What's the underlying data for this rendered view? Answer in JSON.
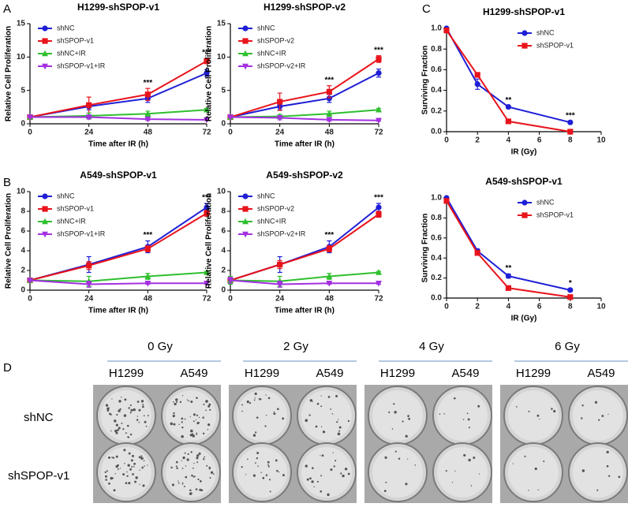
{
  "panel_labels": [
    "A",
    "B",
    "C",
    "D"
  ],
  "chart_data": [
    {
      "type": "line",
      "title": "H1299-shSPOP-v1",
      "xlabel": "Time after IR (h)",
      "ylabel": "Relative Cell Proliferation",
      "x": [
        0,
        24,
        48,
        72
      ],
      "xlim": [
        0,
        72
      ],
      "xticks": [
        0,
        24,
        48,
        72
      ],
      "ylim": [
        0,
        15
      ],
      "yticks": [
        0,
        5,
        10,
        15
      ],
      "legend": "upper left",
      "series": [
        {
          "name": "shNC",
          "color": "#1f1fd6",
          "marker": "circle",
          "values": [
            1,
            2.6,
            3.8,
            7.6
          ],
          "errors": [
            0.2,
            0.5,
            0.6,
            0.5
          ]
        },
        {
          "name": "shSPOP-v1",
          "color": "#e8141c",
          "marker": "square",
          "values": [
            1,
            2.8,
            4.4,
            9.4
          ],
          "errors": [
            0.1,
            1.2,
            0.9,
            0.4
          ]
        },
        {
          "name": "shNC+IR",
          "color": "#2fbf2f",
          "marker": "triangle-up",
          "values": [
            1,
            1.2,
            1.5,
            2.1
          ],
          "errors": [
            0.1,
            0.4,
            0.4,
            0.2
          ]
        },
        {
          "name": "shSPOP-v1+IR",
          "color": "#a330e0",
          "marker": "triangle-down",
          "values": [
            1,
            1.0,
            0.7,
            0.6
          ],
          "errors": [
            0.1,
            0.3,
            0.2,
            0.1
          ]
        }
      ],
      "annotations": [
        {
          "text": "***",
          "x": 48
        },
        {
          "text": "***",
          "x": 72
        }
      ]
    },
    {
      "type": "line",
      "title": "H1299-shSPOP-v2",
      "xlabel": "Time after IR (h)",
      "ylabel": "Relative Cell Proliferation",
      "x": [
        0,
        24,
        48,
        72
      ],
      "xlim": [
        0,
        72
      ],
      "xticks": [
        0,
        24,
        48,
        72
      ],
      "ylim": [
        0,
        15
      ],
      "yticks": [
        0,
        5,
        10,
        15
      ],
      "legend": "upper left",
      "series": [
        {
          "name": "shNC",
          "color": "#1f1fd6",
          "marker": "circle",
          "values": [
            1,
            2.6,
            3.8,
            7.6
          ],
          "errors": [
            0.2,
            0.5,
            0.6,
            0.6
          ]
        },
        {
          "name": "shSPOP-v2",
          "color": "#e8141c",
          "marker": "square",
          "values": [
            1,
            3.3,
            4.8,
            9.7
          ],
          "errors": [
            0.1,
            1.3,
            0.9,
            0.5
          ]
        },
        {
          "name": "shNC+IR",
          "color": "#2fbf2f",
          "marker": "triangle-up",
          "values": [
            1,
            1.1,
            1.5,
            2.1
          ],
          "errors": [
            0.1,
            0.3,
            0.4,
            0.2
          ]
        },
        {
          "name": "shSPOP-v2+IR",
          "color": "#a330e0",
          "marker": "triangle-down",
          "values": [
            1,
            0.9,
            0.6,
            0.5
          ],
          "errors": [
            0.1,
            0.3,
            0.2,
            0.1
          ]
        }
      ],
      "annotations": [
        {
          "text": "***",
          "x": 48
        },
        {
          "text": "***",
          "x": 72
        }
      ]
    },
    {
      "type": "line",
      "title": "A549-shSPOP-v1",
      "xlabel": "Time after IR (h)",
      "ylabel": "Relative Cell Proliferation",
      "x": [
        0,
        24,
        48,
        72
      ],
      "xlim": [
        0,
        72
      ],
      "xticks": [
        0,
        24,
        48,
        72
      ],
      "ylim": [
        0,
        10
      ],
      "yticks": [
        0,
        2,
        4,
        6,
        8,
        10
      ],
      "legend": "upper left",
      "series": [
        {
          "name": "shNC",
          "color": "#1f1fd6",
          "marker": "circle",
          "values": [
            1,
            2.6,
            4.4,
            8.4
          ],
          "errors": [
            0.1,
            0.8,
            0.6,
            0.4
          ]
        },
        {
          "name": "shSPOP-v1",
          "color": "#e8141c",
          "marker": "square",
          "values": [
            1,
            2.5,
            4.2,
            7.8
          ],
          "errors": [
            0.1,
            0.4,
            0.3,
            0.3
          ]
        },
        {
          "name": "shNC+IR",
          "color": "#2fbf2f",
          "marker": "triangle-up",
          "values": [
            1,
            0.9,
            1.4,
            1.8
          ],
          "errors": [
            0.1,
            0.5,
            0.3,
            0.1
          ]
        },
        {
          "name": "shSPOP-v1+IR",
          "color": "#a330e0",
          "marker": "triangle-down",
          "values": [
            1,
            0.6,
            0.7,
            0.7
          ],
          "errors": [
            0.1,
            0.3,
            0.1,
            0.1
          ]
        }
      ],
      "annotations": [
        {
          "text": "***",
          "x": 48
        },
        {
          "text": "***",
          "x": 72
        }
      ]
    },
    {
      "type": "line",
      "title": "A549-shSPOP-v2",
      "xlabel": "Time after IR (h)",
      "ylabel": "Relative Cell Proliferation",
      "x": [
        0,
        24,
        48,
        72
      ],
      "xlim": [
        0,
        72
      ],
      "xticks": [
        0,
        24,
        48,
        72
      ],
      "ylim": [
        0,
        10
      ],
      "yticks": [
        0,
        2,
        4,
        6,
        8,
        10
      ],
      "legend": "upper left",
      "series": [
        {
          "name": "shNC",
          "color": "#1f1fd6",
          "marker": "circle",
          "values": [
            1,
            2.6,
            4.4,
            8.4
          ],
          "errors": [
            0.1,
            0.8,
            0.6,
            0.4
          ]
        },
        {
          "name": "shSPOP-v2",
          "color": "#e8141c",
          "marker": "square",
          "values": [
            1,
            2.6,
            4.2,
            7.7
          ],
          "errors": [
            0.1,
            0.4,
            0.3,
            0.3
          ]
        },
        {
          "name": "shNC+IR",
          "color": "#2fbf2f",
          "marker": "triangle-up",
          "values": [
            1,
            0.9,
            1.4,
            1.8
          ],
          "errors": [
            0.4,
            0.5,
            0.3,
            0.1
          ]
        },
        {
          "name": "shSPOP-v2+IR",
          "color": "#a330e0",
          "marker": "triangle-down",
          "values": [
            1,
            0.6,
            0.7,
            0.7
          ],
          "errors": [
            0.3,
            0.3,
            0.1,
            0.1
          ]
        }
      ],
      "annotations": [
        {
          "text": "***",
          "x": 48
        },
        {
          "text": "***",
          "x": 72
        }
      ]
    },
    {
      "type": "line",
      "title": "H1299-shSPOP-v1",
      "xlabel": "IR (Gy)",
      "ylabel": "Surviving Fraction",
      "x": [
        0,
        2,
        4,
        8
      ],
      "xlim": [
        0,
        10
      ],
      "xticks": [
        0,
        2,
        4,
        6,
        8,
        10
      ],
      "ylim": [
        0,
        1
      ],
      "yticks": [
        {
          "value": 0,
          "label": "0.0"
        },
        0.2,
        0.4,
        0.6,
        0.8,
        {
          "value": 1,
          "label": "1.0"
        }
      ],
      "legend": "upper right",
      "series": [
        {
          "name": "shNC",
          "color": "#1f1fd6",
          "marker": "circle",
          "values": [
            1.0,
            0.46,
            0.24,
            0.09
          ],
          "errors": [
            0.01,
            0.05,
            0.01,
            0.01
          ]
        },
        {
          "name": "shSPOP-v1",
          "color": "#e8141c",
          "marker": "square",
          "values": [
            0.98,
            0.55,
            0.1,
            0.0
          ],
          "errors": [
            0.01,
            0.02,
            0.01,
            0.01
          ]
        }
      ],
      "annotations": [
        {
          "text": "**",
          "x": 4
        },
        {
          "text": "***",
          "x": 8
        }
      ]
    },
    {
      "type": "line",
      "title": "A549-shSPOP-v1",
      "xlabel": "IR (Gy)",
      "ylabel": "Surviving Fraction",
      "x": [
        0,
        2,
        4,
        8
      ],
      "xlim": [
        0,
        10
      ],
      "xticks": [
        0,
        2,
        4,
        6,
        8,
        10
      ],
      "ylim": [
        0,
        1
      ],
      "yticks": [
        {
          "value": 0,
          "label": "0.0"
        },
        0.2,
        0.4,
        0.6,
        0.8,
        {
          "value": 1,
          "label": "1.0"
        }
      ],
      "legend": "upper right",
      "series": [
        {
          "name": "shNC",
          "color": "#1f1fd6",
          "marker": "circle",
          "values": [
            1.0,
            0.47,
            0.22,
            0.08
          ],
          "errors": [
            0.01,
            0.02,
            0.02,
            0.01
          ]
        },
        {
          "name": "shSPOP-v1",
          "color": "#e8141c",
          "marker": "square",
          "values": [
            0.97,
            0.45,
            0.1,
            0.01
          ],
          "errors": [
            0.01,
            0.02,
            0.01,
            0.01
          ]
        }
      ],
      "annotations": [
        {
          "text": "**",
          "x": 4
        },
        {
          "text": "*",
          "x": 8
        }
      ]
    }
  ],
  "panel_d": {
    "doses": [
      "0 Gy",
      "2 Gy",
      "4 Gy",
      "6 Gy"
    ],
    "columns": [
      "H1299",
      "A549"
    ],
    "rows": [
      "shNC",
      "shSPOP-v1"
    ]
  }
}
